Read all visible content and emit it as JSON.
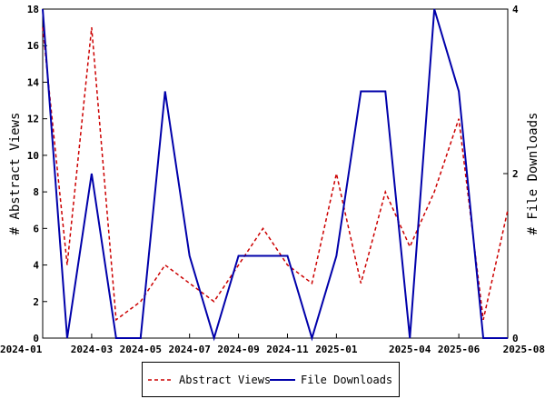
{
  "chart_data": {
    "type": "line",
    "x": [
      "2024-01",
      "2024-02",
      "2024-03",
      "2024-04",
      "2024-05",
      "2024-06",
      "2024-07",
      "2024-08",
      "2024-09",
      "2024-10",
      "2024-11",
      "2024-12",
      "2025-01",
      "2025-02",
      "2025-03",
      "2025-04",
      "2025-05",
      "2025-06",
      "2025-07",
      "2025-08"
    ],
    "x_tick_labels": [
      "2024-01",
      "2024-03",
      "2024-05",
      "2024-07",
      "2024-09",
      "2024-11",
      "2025-01",
      "2025-04",
      "2025-06",
      "2025-08"
    ],
    "x_tick_positions": [
      "2024-01",
      "2024-03",
      "2024-05",
      "2024-07",
      "2024-09",
      "2024-11",
      "2025-01",
      "2025-04",
      "2025-06",
      "2025-08"
    ],
    "ylabel_left": "# Abstract Views",
    "ylabel_right": "# File Downloads",
    "ylim_left": [
      0,
      18
    ],
    "ylim_right": [
      0,
      4
    ],
    "y_ticks_left": [
      0,
      2,
      4,
      6,
      8,
      10,
      12,
      14,
      16,
      18
    ],
    "y_ticks_right": [
      0,
      2,
      4
    ],
    "grid": false,
    "legend_position": "bottom-center",
    "series": [
      {
        "name": "Abstract Views",
        "axis": "left",
        "color": "#cc0000",
        "style": "dashed",
        "values": [
          17,
          4,
          17,
          1,
          2,
          4,
          3,
          2,
          4,
          6,
          4,
          3,
          9,
          3,
          8,
          5,
          8,
          12,
          1,
          7
        ]
      },
      {
        "name": "File Downloads",
        "axis": "right",
        "color": "#0000aa",
        "style": "solid",
        "values": [
          4,
          0,
          2,
          0,
          0,
          3,
          1,
          0,
          1,
          1,
          1,
          0,
          1,
          3,
          3,
          0,
          4,
          3,
          0,
          0
        ]
      }
    ]
  }
}
